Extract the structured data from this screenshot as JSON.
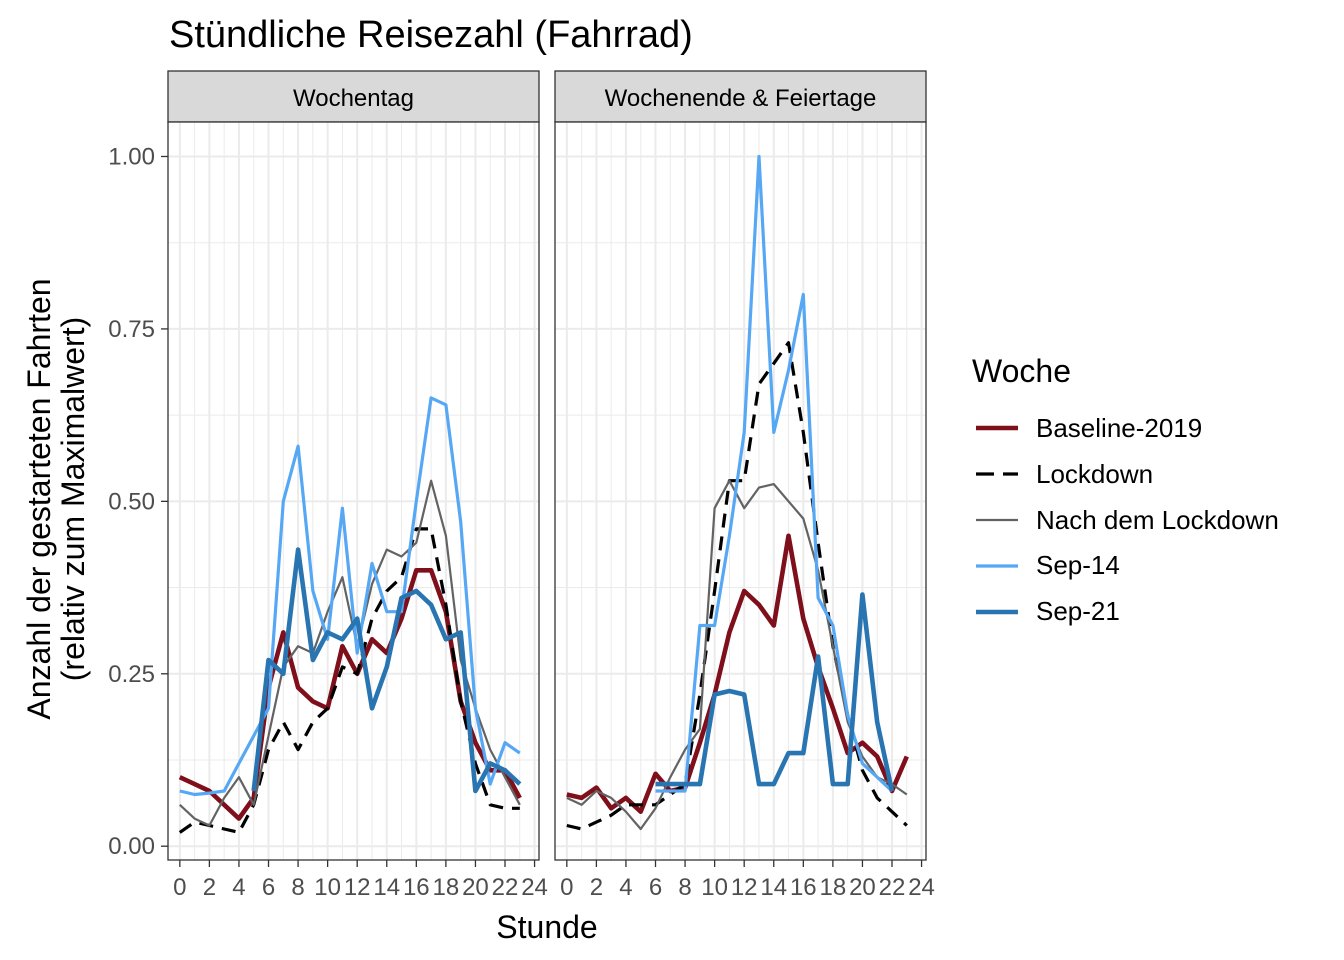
{
  "chart_data": {
    "type": "line",
    "title": "Stündliche Reisezahl (Fahrrad)",
    "xlabel": "Stunde",
    "ylabel_lines": [
      "Anzahl der gestarteten Fahrten",
      "(relativ zum Maximalwert)"
    ],
    "xlim": [
      -0.8,
      24.3
    ],
    "ylim": [
      -0.02,
      1.05
    ],
    "x_ticks": [
      0,
      2,
      4,
      6,
      8,
      10,
      12,
      14,
      16,
      18,
      20,
      22,
      24
    ],
    "x_tick_labels": [
      "0",
      "2",
      "4",
      "6",
      "8",
      "10",
      "12",
      "14",
      "16",
      "18",
      "20",
      "22",
      "24"
    ],
    "y_ticks": [
      0,
      0.25,
      0.5,
      0.75,
      1.0
    ],
    "y_tick_labels": [
      "0.00",
      "0.25",
      "0.50",
      "0.75",
      "1.00"
    ],
    "grid": true,
    "legend": {
      "title": "Woche",
      "position": "right",
      "entries": [
        "Baseline-2019",
        "Lockdown",
        "Nach dem Lockdown",
        "Sep-14",
        "Sep-21"
      ]
    },
    "series_styles": [
      {
        "name": "Baseline-2019",
        "color": "#7f0f1a",
        "dash": "solid",
        "width": "thick"
      },
      {
        "name": "Lockdown",
        "color": "#000000",
        "dash": "dashed",
        "width": "medium"
      },
      {
        "name": "Nach dem Lockdown",
        "color": "#636363",
        "dash": "solid",
        "width": "thin"
      },
      {
        "name": "Sep-14",
        "color": "#56a8f5",
        "dash": "solid",
        "width": "medium"
      },
      {
        "name": "Sep-21",
        "color": "#2875b2",
        "dash": "solid",
        "width": "thick"
      }
    ],
    "facets": [
      {
        "label": "Wochentag",
        "series": [
          {
            "name": "Baseline-2019",
            "x": [
              0,
              1,
              2,
              3,
              4,
              5,
              6,
              7,
              8,
              9,
              10,
              11,
              12,
              13,
              14,
              15,
              16,
              17,
              18,
              19,
              20,
              21,
              22,
              23
            ],
            "values": [
              0.1,
              0.09,
              0.08,
              0.06,
              0.04,
              0.07,
              0.23,
              0.31,
              0.23,
              0.21,
              0.2,
              0.29,
              0.25,
              0.3,
              0.28,
              0.33,
              0.4,
              0.4,
              0.34,
              0.21,
              0.15,
              0.11,
              0.11,
              0.07
            ]
          },
          {
            "name": "Lockdown",
            "x": [
              0,
              1,
              2,
              3,
              4,
              5,
              6,
              7,
              8,
              9,
              10,
              11,
              12,
              13,
              14,
              15,
              16,
              17,
              18,
              19,
              20,
              21,
              22,
              23
            ],
            "values": [
              0.02,
              0.035,
              0.03,
              0.025,
              0.02,
              0.06,
              0.14,
              0.18,
              0.14,
              0.18,
              0.2,
              0.26,
              0.25,
              0.33,
              0.37,
              0.39,
              0.46,
              0.46,
              0.35,
              0.21,
              0.12,
              0.06,
              0.055,
              0.055
            ]
          },
          {
            "name": "Nach dem Lockdown",
            "x": [
              0,
              1,
              2,
              3,
              4,
              5,
              6,
              7,
              8,
              9,
              10,
              11,
              12,
              13,
              14,
              15,
              16,
              17,
              18,
              19,
              20,
              21,
              22,
              23
            ],
            "values": [
              0.06,
              0.04,
              0.03,
              0.07,
              0.1,
              0.06,
              0.16,
              0.26,
              0.29,
              0.28,
              0.34,
              0.39,
              0.29,
              0.38,
              0.43,
              0.42,
              0.44,
              0.53,
              0.45,
              0.27,
              0.2,
              0.14,
              0.1,
              0.06
            ]
          },
          {
            "name": "Sep-14",
            "x": [
              0,
              1,
              2,
              3,
              4,
              5,
              6,
              7,
              8,
              9,
              10,
              11,
              12,
              13,
              14,
              15,
              16,
              17,
              18,
              19,
              20,
              21,
              22,
              23
            ],
            "values": [
              0.08,
              0.075,
              0.077,
              0.08,
              0.12,
              0.16,
              0.2,
              0.5,
              0.58,
              0.37,
              0.3,
              0.49,
              0.28,
              0.41,
              0.34,
              0.34,
              0.5,
              0.65,
              0.64,
              0.47,
              0.2,
              0.09,
              0.15,
              0.135
            ]
          },
          {
            "name": "Sep-21",
            "x": [
              5,
              6,
              7,
              8,
              9,
              10,
              11,
              12,
              13,
              14,
              15,
              16,
              17,
              18,
              19,
              20,
              21,
              22,
              23
            ],
            "values": [
              0.08,
              0.27,
              0.25,
              0.43,
              0.27,
              0.31,
              0.3,
              0.33,
              0.2,
              0.26,
              0.36,
              0.37,
              0.35,
              0.3,
              0.31,
              0.08,
              0.12,
              0.11,
              0.09
            ]
          }
        ]
      },
      {
        "label": "Wochenende & Feiertage",
        "series": [
          {
            "name": "Baseline-2019",
            "x": [
              0,
              1,
              2,
              3,
              4,
              5,
              6,
              7,
              8,
              9,
              10,
              11,
              12,
              13,
              14,
              15,
              16,
              17,
              18,
              19,
              20,
              21,
              22,
              23
            ],
            "values": [
              0.075,
              0.07,
              0.085,
              0.055,
              0.07,
              0.05,
              0.105,
              0.08,
              0.085,
              0.15,
              0.22,
              0.31,
              0.37,
              0.35,
              0.32,
              0.45,
              0.33,
              0.26,
              0.2,
              0.135,
              0.15,
              0.13,
              0.08,
              0.13
            ]
          },
          {
            "name": "Lockdown",
            "x": [
              0,
              1,
              2,
              3,
              4,
              5,
              6,
              7,
              8,
              9,
              10,
              11,
              12,
              13,
              14,
              15,
              16,
              17,
              18,
              19,
              20,
              21,
              22,
              23
            ],
            "values": [
              0.03,
              0.025,
              0.035,
              0.045,
              0.06,
              0.06,
              0.06,
              0.075,
              0.09,
              0.22,
              0.37,
              0.53,
              0.53,
              0.67,
              0.7,
              0.73,
              0.6,
              0.44,
              0.29,
              0.19,
              0.11,
              0.07,
              0.05,
              0.03
            ]
          },
          {
            "name": "Nach dem Lockdown",
            "x": [
              0,
              1,
              2,
              3,
              4,
              5,
              6,
              7,
              8,
              9,
              10,
              11,
              12,
              13,
              14,
              15,
              16,
              17,
              18,
              19,
              20,
              21,
              22,
              23
            ],
            "values": [
              0.07,
              0.06,
              0.08,
              0.07,
              0.05,
              0.025,
              0.055,
              0.1,
              0.14,
              0.17,
              0.49,
              0.53,
              0.49,
              0.52,
              0.525,
              0.5,
              0.475,
              0.4,
              0.29,
              0.18,
              0.13,
              0.1,
              0.09,
              0.075
            ]
          },
          {
            "name": "Sep-14",
            "x": [
              6,
              7,
              8,
              9,
              10,
              11,
              12,
              13,
              14,
              15,
              16,
              17,
              18,
              19,
              20,
              21,
              22
            ],
            "values": [
              0.08,
              0.08,
              0.08,
              0.32,
              0.32,
              0.45,
              0.6,
              1.0,
              0.6,
              0.69,
              0.8,
              0.36,
              0.32,
              0.19,
              0.12,
              0.1,
              0.08
            ]
          },
          {
            "name": "Sep-21",
            "x": [
              6,
              7,
              8,
              9,
              10,
              11,
              12,
              13,
              14,
              15,
              16,
              17,
              18,
              19,
              20,
              21,
              22
            ],
            "values": [
              0.09,
              0.09,
              0.09,
              0.09,
              0.22,
              0.225,
              0.22,
              0.09,
              0.09,
              0.135,
              0.135,
              0.275,
              0.09,
              0.09,
              0.365,
              0.18,
              0.08
            ]
          }
        ]
      }
    ]
  }
}
